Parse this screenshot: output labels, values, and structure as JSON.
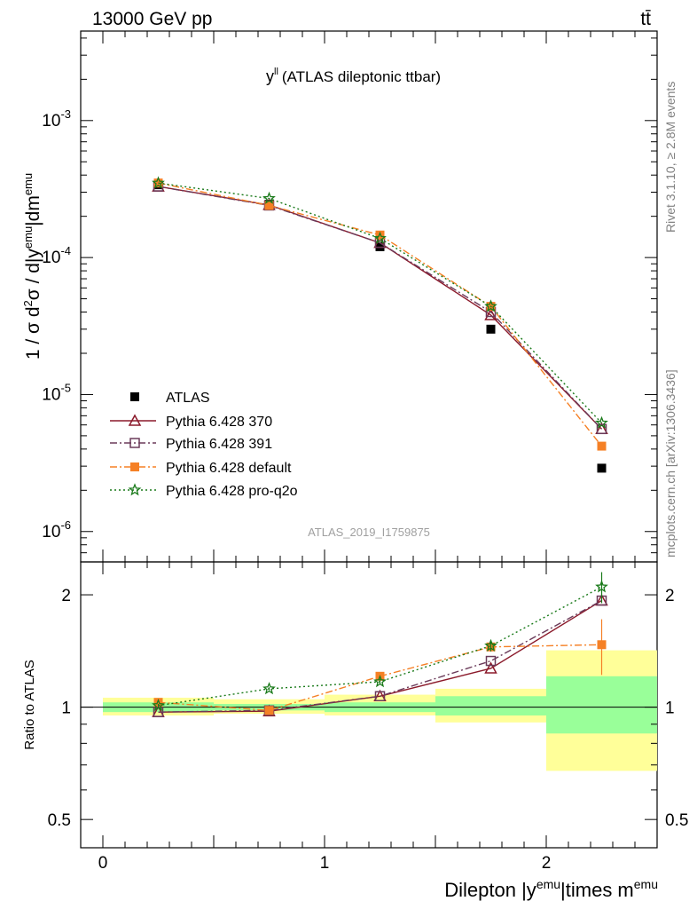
{
  "header": {
    "left": "13000 GeV pp",
    "right": "tt̄"
  },
  "side_text": {
    "rivet": "Rivet 3.1.10, ≥ 2.8M events",
    "mcplots": "mcplots.cern.ch [arXiv:1306.3436]"
  },
  "chart_data": [
    {
      "panel": "main",
      "type": "scatter",
      "title": "y^ll (ATLAS dileptonic ttbar)",
      "ylabel": "1 / σ d²σ / d|y^emu|dm^emu",
      "xlabel": "",
      "analysis_label": "ATLAS_2019_I1759875",
      "yscale": "log",
      "ylim": [
        6e-07,
        0.0045
      ],
      "xlim": [
        -0.1,
        2.5
      ],
      "y_ticks": [
        "10^-6",
        "10^-5",
        "10^-4",
        "10^-3"
      ],
      "legend_position": "lower-left",
      "series": [
        {
          "name": "ATLAS",
          "style": "data",
          "color": "#000000",
          "marker": "filled-square",
          "x": [
            0.25,
            0.75,
            1.25,
            1.75,
            2.25
          ],
          "y": [
            0.00034,
            0.000245,
            0.00012,
            3e-05,
            2.9e-06
          ],
          "bins": [
            [
              0,
              0.5
            ],
            [
              0.5,
              1.0
            ],
            [
              1.0,
              1.5
            ],
            [
              1.5,
              2.0
            ],
            [
              2.0,
              2.5
            ]
          ]
        },
        {
          "name": "Pythia 6.428 370",
          "color": "#8b1a2b",
          "line": "solid",
          "marker": "open-triangle",
          "x": [
            0.25,
            0.75,
            1.25,
            1.75,
            2.25
          ],
          "y": [
            0.00033,
            0.000242,
            0.000128,
            3.8e-05,
            5.6e-06
          ]
        },
        {
          "name": "Pythia 6.428 391",
          "color": "#6b3b5a",
          "line": "dashdot",
          "marker": "open-square",
          "x": [
            0.25,
            0.75,
            1.25,
            1.75,
            2.25
          ],
          "y": [
            0.00033,
            0.00024,
            0.000128,
            4e-05,
            5.6e-06
          ]
        },
        {
          "name": "Pythia 6.428 default",
          "color": "#f58025",
          "line": "dashdot",
          "marker": "filled-square",
          "x": [
            0.25,
            0.75,
            1.25,
            1.75,
            2.25
          ],
          "y": [
            0.00035,
            0.00024,
            0.000146,
            4.4e-05,
            4.2e-06
          ]
        },
        {
          "name": "Pythia 6.428 pro-q2o",
          "color": "#1a7a1a",
          "line": "dotted",
          "marker": "star",
          "x": [
            0.25,
            0.75,
            1.25,
            1.75,
            2.25
          ],
          "y": [
            0.00035,
            0.00027,
            0.000138,
            4.4e-05,
            6.2e-06
          ]
        }
      ]
    },
    {
      "panel": "ratio",
      "type": "line",
      "ylabel": "Ratio to ATLAS",
      "xlabel": "Dilepton |y^emu|times m^emu",
      "yscale": "log",
      "ylim": [
        0.42,
        2.45
      ],
      "xlim": [
        -0.1,
        2.5
      ],
      "x_ticks": [
        "0",
        "1",
        "2"
      ],
      "y_ticks": [
        "0.5",
        "1",
        "2"
      ],
      "bands": [
        {
          "x0": 0.0,
          "x1": 0.5,
          "green": [
            0.97,
            1.03
          ],
          "yellow": [
            0.95,
            1.06
          ]
        },
        {
          "x0": 0.5,
          "x1": 1.0,
          "green": [
            0.98,
            1.02
          ],
          "yellow": [
            0.96,
            1.05
          ]
        },
        {
          "x0": 1.0,
          "x1": 1.5,
          "green": [
            0.97,
            1.03
          ],
          "yellow": [
            0.95,
            1.08
          ]
        },
        {
          "x0": 1.5,
          "x1": 2.0,
          "green": [
            0.95,
            1.07
          ],
          "yellow": [
            0.91,
            1.12
          ]
        },
        {
          "x0": 2.0,
          "x1": 2.5,
          "green": [
            0.85,
            1.21
          ],
          "yellow": [
            0.675,
            1.42
          ]
        }
      ],
      "series": [
        {
          "name": "Pythia 6.428 370",
          "x": [
            0.25,
            0.75,
            1.25,
            1.75,
            2.25
          ],
          "y": [
            0.97,
            0.975,
            1.07,
            1.27,
            1.93
          ]
        },
        {
          "name": "Pythia 6.428 391",
          "x": [
            0.25,
            0.75,
            1.25,
            1.75,
            2.25
          ],
          "y": [
            0.97,
            0.98,
            1.07,
            1.33,
            1.93
          ]
        },
        {
          "name": "Pythia 6.428 default",
          "x": [
            0.25,
            0.75,
            1.25,
            1.75,
            2.25
          ],
          "y": [
            1.03,
            0.98,
            1.21,
            1.45,
            1.47
          ],
          "yerr": [
            0.01,
            0.01,
            0.02,
            0.04,
            0.25
          ]
        },
        {
          "name": "Pythia 6.428 pro-q2o",
          "x": [
            0.25,
            0.75,
            1.25,
            1.75,
            2.25
          ],
          "y": [
            1.01,
            1.12,
            1.17,
            1.46,
            2.1
          ],
          "yerr": [
            0.01,
            0.01,
            0.02,
            0.05,
            0.2
          ]
        }
      ]
    }
  ]
}
